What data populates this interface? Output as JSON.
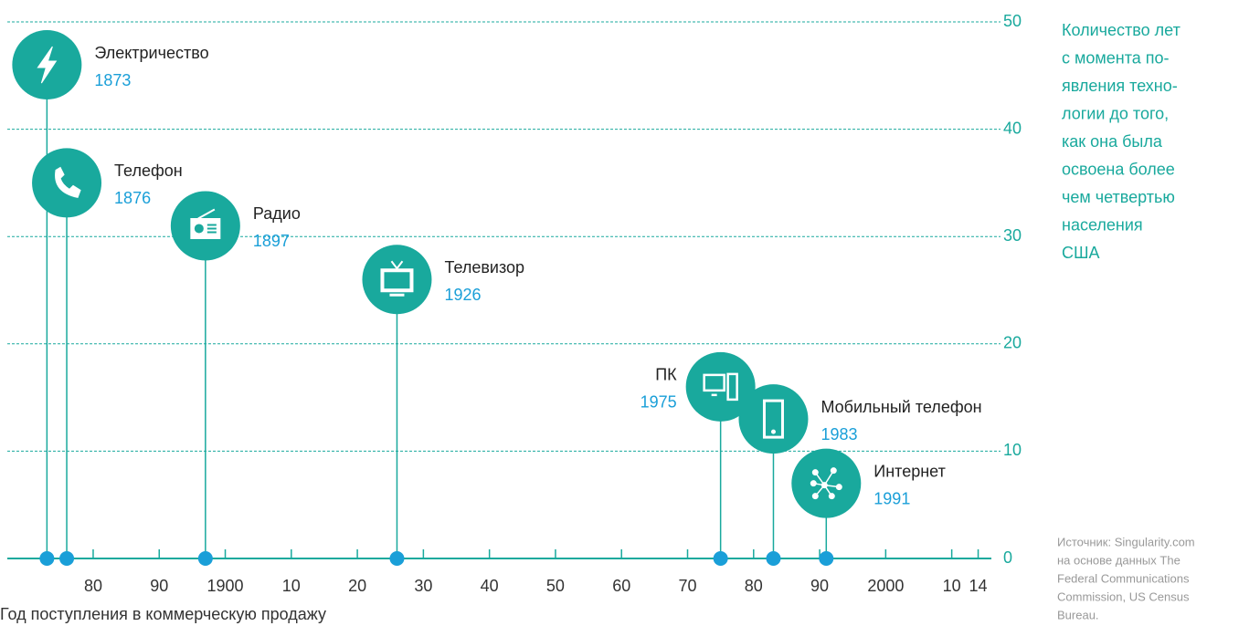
{
  "chart_data": {
    "type": "lollipop",
    "x_label": "Год поступления в коммерческую продажу",
    "note": [
      "Количество лет",
      "с момента по-",
      "явления техно-",
      "логии до того,",
      "как она была",
      "освоена более",
      "чем четвертью",
      "населения",
      "США"
    ],
    "source": [
      "Источник: Singularity.com",
      "на основе данных The",
      "Federal Communications",
      "Commission, US Census",
      "Bureau."
    ],
    "categories": [
      "Электричество",
      "Телефон",
      "Радио",
      "Телевизор",
      "ПК",
      "Мобильный телефон",
      "Интернет"
    ],
    "x": [
      1873,
      1876,
      1897,
      1926,
      1975,
      1983,
      1991
    ],
    "values": [
      46,
      35,
      31,
      26,
      16,
      13,
      7
    ],
    "color": "#19a99d",
    "marker_color": "#1a9fd8",
    "xlim": [
      1867,
      2016
    ],
    "xticks": [
      {
        "value": 1880,
        "label": "80"
      },
      {
        "value": 1890,
        "label": "90"
      },
      1900,
      {
        "value": 1910,
        "label": "10"
      },
      {
        "value": 1920,
        "label": "20"
      },
      {
        "value": 1930,
        "label": "30"
      },
      {
        "value": 1940,
        "label": "40"
      },
      {
        "value": 1950,
        "label": "50"
      },
      {
        "value": 1960,
        "label": "60"
      },
      {
        "value": 1970,
        "label": "70"
      },
      {
        "value": 1980,
        "label": "80"
      },
      {
        "value": 1990,
        "label": "90"
      },
      2000,
      {
        "value": 2010,
        "label": "10"
      },
      {
        "value": 2014,
        "label": "14"
      }
    ],
    "ylim": [
      0,
      50
    ],
    "yticks": [
      0,
      10,
      20,
      30,
      40,
      50
    ],
    "grid": true
  }
}
